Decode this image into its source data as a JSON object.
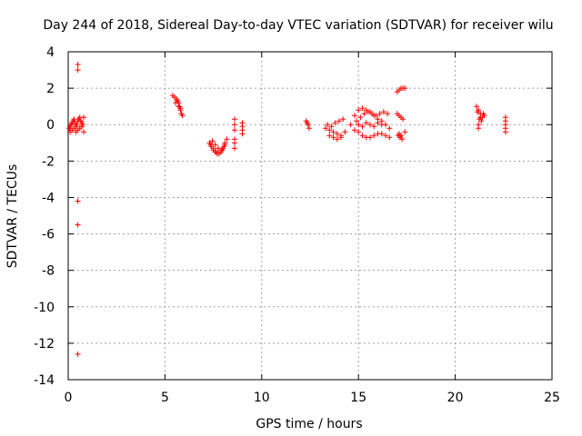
{
  "chart_data": {
    "type": "scatter",
    "title": "Day 244 of 2018, Sidereal Day-to-day VTEC variation (SDTVAR) for receiver wilu",
    "xlabel": "GPS time / hours",
    "ylabel": "SDTVAR / TECUs",
    "xlim": [
      0,
      25
    ],
    "ylim": [
      -14,
      4
    ],
    "xticks": [
      0,
      5,
      10,
      15,
      20,
      25
    ],
    "yticks": [
      -14,
      -12,
      -10,
      -8,
      -6,
      -4,
      -2,
      0,
      2,
      4
    ],
    "grid": true,
    "marker": "+",
    "color": "#ff0000",
    "series": [
      {
        "name": "SDTVAR",
        "x": [
          0.05,
          0.1,
          0.15,
          0.2,
          0.25,
          0.3,
          0.35,
          0.4,
          0.45,
          0.5,
          0.55,
          0.6,
          0.65,
          0.7,
          0.75,
          0.8,
          0.1,
          0.2,
          0.3,
          0.4,
          0.5,
          0.6,
          0.7,
          0.8,
          0.5,
          0.5,
          0.5,
          0.5,
          0.5,
          5.4,
          5.5,
          5.6,
          5.65,
          5.7,
          5.75,
          5.8,
          5.85,
          5.9,
          5.55,
          5.7,
          5.8,
          7.3,
          7.4,
          7.5,
          7.6,
          7.7,
          7.8,
          7.9,
          8.0,
          8.1,
          8.2,
          7.35,
          7.5,
          7.65,
          7.8,
          7.95,
          8.1,
          7.45,
          7.6,
          7.75,
          7.9,
          8.05,
          8.6,
          8.6,
          8.6,
          8.6,
          8.6,
          8.6,
          9.0,
          9.0,
          9.0,
          9.0,
          12.3,
          12.4,
          12.45,
          12.35,
          13.3,
          13.5,
          13.7,
          13.9,
          14.1,
          14.3,
          13.4,
          13.6,
          13.8,
          14.0,
          14.2,
          13.5,
          13.7,
          13.9,
          14.1,
          14.6,
          14.8,
          15.0,
          15.2,
          15.4,
          15.6,
          15.8,
          16.0,
          16.2,
          16.4,
          16.6,
          14.8,
          15.0,
          15.2,
          15.4,
          15.6,
          15.8,
          16.0,
          16.2,
          16.4,
          16.6,
          14.9,
          15.1,
          15.3,
          15.5,
          15.7,
          15.9,
          16.1,
          16.3,
          16.5,
          15.0,
          15.2,
          15.4,
          15.6,
          15.8,
          16.0,
          16.2,
          17.0,
          17.1,
          17.2,
          17.3,
          17.4,
          17.0,
          17.1,
          17.2,
          17.3,
          17.05,
          17.15,
          17.25,
          17.1,
          17.2,
          17.4,
          21.1,
          21.2,
          21.3,
          21.4,
          21.5,
          21.15,
          21.25,
          21.35,
          21.45,
          21.2,
          21.3,
          21.2,
          22.6,
          22.6,
          22.6,
          22.6,
          22.6
        ],
        "y": [
          -0.2,
          -0.1,
          0.0,
          0.1,
          0.2,
          0.3,
          0.1,
          -0.1,
          0.0,
          0.2,
          0.3,
          0.4,
          0.2,
          0.1,
          0.0,
          0.4,
          -0.4,
          -0.3,
          -0.2,
          -0.4,
          -0.3,
          -0.2,
          -0.1,
          -0.4,
          3.3,
          3.0,
          -4.2,
          -5.5,
          -12.6,
          1.6,
          1.5,
          1.4,
          1.3,
          1.2,
          1.0,
          0.8,
          0.6,
          0.5,
          1.2,
          1.0,
          0.9,
          -1.0,
          -1.2,
          -1.4,
          -1.5,
          -1.6,
          -1.6,
          -1.5,
          -1.3,
          -1.0,
          -0.8,
          -1.1,
          -1.3,
          -1.5,
          -1.6,
          -1.4,
          -1.1,
          -0.9,
          -1.1,
          -1.3,
          -1.4,
          -1.2,
          0.3,
          0.0,
          -0.3,
          -0.8,
          -1.0,
          -1.3,
          0.1,
          -0.1,
          -0.3,
          -0.5,
          0.2,
          0.0,
          -0.2,
          0.1,
          -0.2,
          -0.3,
          -0.4,
          -0.5,
          -0.6,
          -0.4,
          0.0,
          -0.1,
          0.1,
          0.2,
          0.3,
          -0.6,
          -0.7,
          -0.8,
          -0.7,
          0.0,
          0.5,
          0.8,
          0.9,
          0.8,
          0.7,
          0.5,
          0.3,
          0.2,
          0.0,
          -0.2,
          -0.3,
          -0.4,
          -0.6,
          -0.7,
          -0.7,
          -0.6,
          -0.5,
          -0.5,
          -0.6,
          -0.7,
          0.2,
          0.4,
          0.6,
          0.7,
          0.6,
          0.5,
          0.6,
          0.7,
          0.6,
          0.0,
          -0.1,
          0.1,
          0.0,
          -0.1,
          0.1,
          0.0,
          1.8,
          1.9,
          2.0,
          2.0,
          2.0,
          0.6,
          0.5,
          0.4,
          0.3,
          -0.6,
          -0.7,
          -0.8,
          -0.5,
          -0.6,
          -0.4,
          1.0,
          0.8,
          0.6,
          0.4,
          0.5,
          0.7,
          0.3,
          0.2,
          0.6,
          0.0,
          0.4,
          -0.2,
          0.4,
          0.2,
          0.0,
          -0.2,
          -0.4
        ]
      }
    ]
  }
}
